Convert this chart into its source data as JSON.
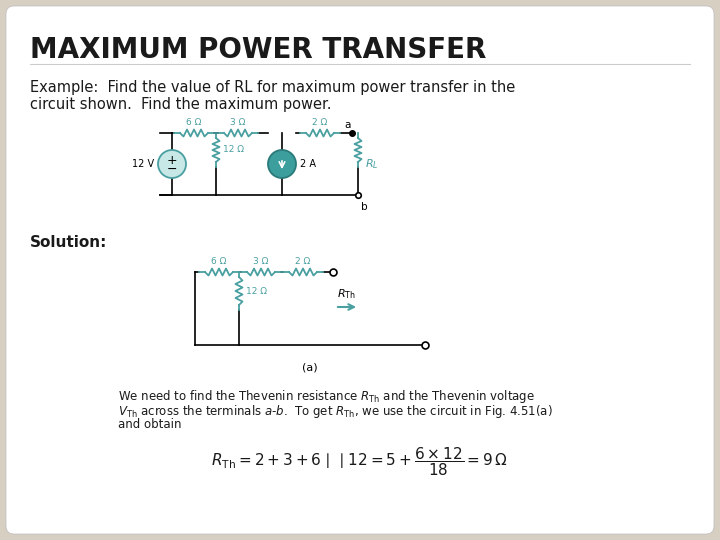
{
  "title": "MAXIMUM POWER TRANSFER",
  "example_line1": "Example:  Find the value of RL for maximum power transfer in the",
  "example_line2": "circuit shown.  Find the maximum power.",
  "solution_label": "Solution:",
  "caption_a": "(a)",
  "body_line1": "We need to find the Thevenin resistance $R_{\\mathrm{Th}}$ and the Thevenin voltage",
  "body_line2": "$V_{\\mathrm{Th}}$ across the terminals $a$-$b$.  To get $R_{\\mathrm{Th}}$, we use the circuit in Fig. 4.51(a)",
  "body_line3": "and obtain",
  "formula": "$R_{\\mathrm{Th}} = 2 + 3 + 6 \\mid\\mid 12 = 5 + \\dfrac{6 \\times 12}{18} = 9\\,\\Omega$",
  "bg_outer": "#d6cfc2",
  "bg_inner": "#ffffff",
  "title_color": "#1a1a1a",
  "text_color": "#1a1a1a",
  "teal": "#4a9fa0",
  "fig_w": 7.2,
  "fig_h": 5.4,
  "dpi": 100
}
